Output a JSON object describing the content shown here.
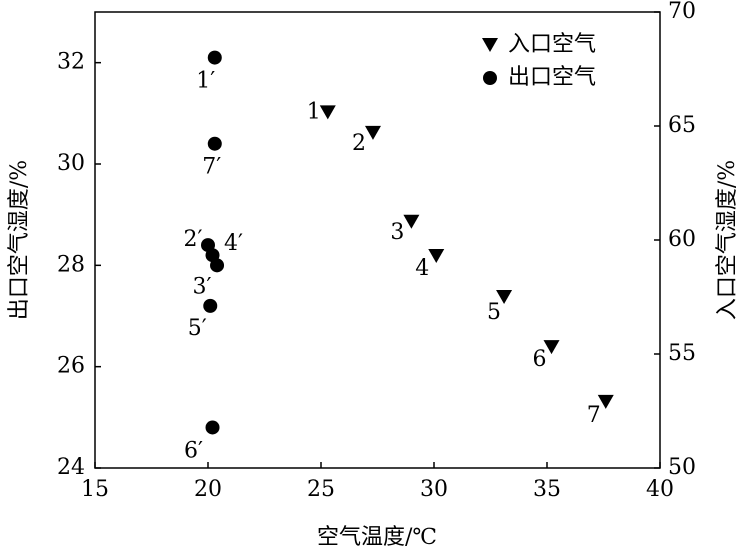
{
  "chart_data": {
    "type": "scatter",
    "x_label": "空气温度/℃",
    "y_label": "出口空气湿度/%",
    "y2_label": "入口空气湿度/%",
    "xlim": [
      15,
      40
    ],
    "xticks": [
      15,
      20,
      25,
      30,
      35,
      40
    ],
    "ylim": [
      24,
      33
    ],
    "yticks": [
      24,
      26,
      28,
      30,
      32
    ],
    "y2lim": [
      50,
      70
    ],
    "y2ticks": [
      50,
      55,
      60,
      65,
      70
    ],
    "legend": "upper right",
    "series": [
      {
        "name": "入口空气",
        "color": "#000000",
        "marker": "triangle-down",
        "axis": "y2",
        "x": [
          25.3,
          27.3,
          29.0,
          30.1,
          33.1,
          35.2,
          37.6
        ],
        "values": [
          65.6,
          64.7,
          60.8,
          59.3,
          57.5,
          55.3,
          52.9
        ],
        "labels": [
          "1",
          "2",
          "3",
          "4",
          "5",
          "6",
          "7"
        ]
      },
      {
        "name": "出口空气",
        "color": "#000000",
        "marker": "circle",
        "x": [
          20.3,
          20.0,
          20.4,
          20.2,
          20.1,
          20.2,
          20.3
        ],
        "values": [
          32.1,
          28.4,
          28.0,
          28.2,
          27.2,
          24.8,
          30.4
        ],
        "labels": [
          "1′",
          "2′",
          "3′",
          "4′",
          "5′",
          "6′",
          "7′"
        ]
      }
    ]
  }
}
